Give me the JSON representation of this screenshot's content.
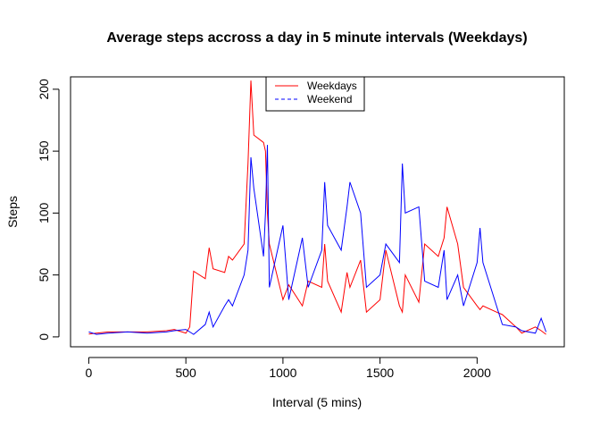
{
  "chart_data": {
    "type": "line",
    "title": "Average steps accross a day in 5 minute intervals (Weekdays)",
    "xlabel": "Interval (5 mins)",
    "ylabel": "Steps",
    "x": [
      0,
      40,
      100,
      200,
      300,
      400,
      440,
      500,
      520,
      540,
      600,
      620,
      640,
      700,
      720,
      740,
      800,
      820,
      835,
      850,
      900,
      910,
      920,
      930,
      1000,
      1030,
      1100,
      1130,
      1200,
      1215,
      1230,
      1300,
      1330,
      1345,
      1400,
      1430,
      1500,
      1530,
      1600,
      1615,
      1630,
      1700,
      1730,
      1800,
      1830,
      1845,
      1900,
      1930,
      2000,
      2015,
      2030,
      2100,
      2130,
      2200,
      2230,
      2300,
      2330,
      2355
    ],
    "series": [
      {
        "name": "Weekdays",
        "color": "#ff0000",
        "linestyle": "solid",
        "values": [
          2.3,
          3,
          4,
          4,
          4,
          5,
          6,
          3,
          8,
          53,
          47,
          72,
          55,
          52,
          65,
          62,
          75,
          140,
          207,
          163,
          157,
          150,
          100,
          75,
          30,
          42,
          25,
          45,
          40,
          75,
          45,
          20,
          52,
          40,
          62,
          20,
          30,
          70,
          25,
          20,
          50,
          28,
          75,
          65,
          80,
          105,
          75,
          40,
          25,
          22,
          25,
          20,
          18,
          8,
          3,
          8,
          5,
          2
        ]
      },
      {
        "name": "Weekend",
        "color": "#0000ff",
        "linestyle": "dashed",
        "values": [
          4,
          2,
          3,
          4,
          3,
          4,
          5,
          6,
          4,
          2,
          10,
          20,
          8,
          25,
          30,
          25,
          50,
          70,
          145,
          120,
          65,
          100,
          155,
          40,
          90,
          30,
          80,
          40,
          70,
          125,
          90,
          70,
          105,
          125,
          100,
          40,
          50,
          75,
          60,
          140,
          100,
          105,
          45,
          40,
          70,
          30,
          50,
          25,
          60,
          88,
          60,
          25,
          10,
          8,
          5,
          3,
          15,
          4
        ]
      }
    ],
    "xlim": [
      -94,
      2449
    ],
    "ylim": [
      -8,
      210
    ],
    "xticks": [
      0,
      500,
      1000,
      1500,
      2000
    ],
    "yticks": [
      0,
      50,
      100,
      150,
      200
    ],
    "legend": "top"
  }
}
